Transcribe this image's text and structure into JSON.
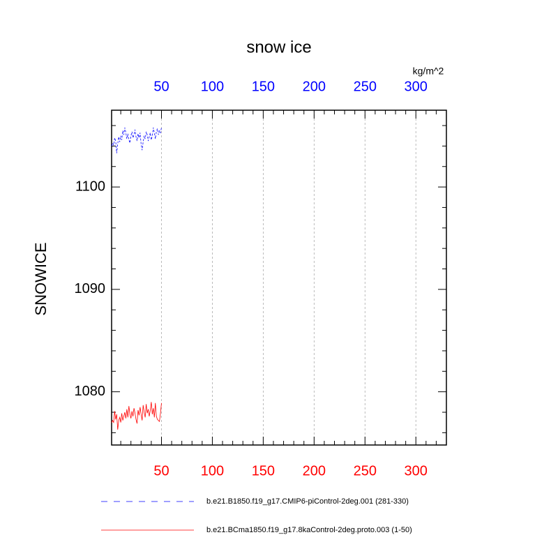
{
  "chart_data": {
    "type": "line",
    "title": "snow ice",
    "ylabel": "SNOWICE",
    "units": "kg/m^2",
    "x": [
      1,
      2,
      3,
      4,
      5,
      6,
      7,
      8,
      9,
      10,
      11,
      12,
      13,
      14,
      15,
      16,
      17,
      18,
      19,
      20,
      21,
      22,
      23,
      24,
      25,
      26,
      27,
      28,
      29,
      30,
      31,
      32,
      33,
      34,
      35,
      36,
      37,
      38,
      39,
      40,
      41,
      42,
      43,
      44,
      45,
      46,
      47,
      48,
      49,
      50
    ],
    "series": [
      {
        "name": "b.e21.B1850.f19_g17.CMIP6-piControl-2deg.001 (281-330)",
        "color": "#0000ff",
        "dash": true,
        "values": [
          1104.0,
          1104.3,
          1104.1,
          1104.8,
          1104.5,
          1103.3,
          1104.2,
          1104.9,
          1104.4,
          1105.0,
          1104.6,
          1105.5,
          1105.1,
          1105.8,
          1105.3,
          1104.7,
          1105.2,
          1104.6,
          1104.3,
          1105.0,
          1105.4,
          1104.8,
          1105.1,
          1105.6,
          1104.9,
          1104.5,
          1105.2,
          1104.8,
          1105.3,
          1104.2,
          1103.6,
          1104.4,
          1105.0,
          1104.7,
          1105.4,
          1105.1,
          1104.5,
          1104.9,
          1105.3,
          1104.6,
          1105.0,
          1105.8,
          1105.3,
          1104.7,
          1105.4,
          1105.7,
          1105.1,
          1105.5,
          1105.3,
          1105.8
        ]
      },
      {
        "name": "b.e21.BCma1850.f19_g17.8kaControl-2deg.proto.003 (1-50)",
        "color": "#ff0000",
        "dash": false,
        "values": [
          1077.0,
          1077.2,
          1077.0,
          1078.1,
          1077.3,
          1077.8,
          1076.3,
          1077.2,
          1077.5,
          1077.0,
          1077.9,
          1077.2,
          1077.6,
          1078.0,
          1077.4,
          1078.3,
          1077.5,
          1078.6,
          1077.8,
          1077.4,
          1078.1,
          1077.6,
          1078.4,
          1077.9,
          1077.3,
          1076.9,
          1078.2,
          1077.7,
          1078.5,
          1077.8,
          1077.2,
          1078.7,
          1078.0,
          1077.5,
          1078.8,
          1077.9,
          1078.3,
          1077.6,
          1078.2,
          1079.0,
          1077.8,
          1078.4,
          1077.5,
          1078.9,
          1077.6,
          1077.3,
          1077.2,
          1077.1,
          1077.9,
          1078.9
        ]
      }
    ],
    "xlim": [
      1,
      330
    ],
    "xticks": [
      50,
      100,
      150,
      200,
      250,
      300
    ],
    "xminorticks": [
      10,
      20,
      30,
      40,
      60,
      70,
      80,
      90,
      110,
      120,
      130,
      140,
      160,
      170,
      180,
      190,
      210,
      220,
      230,
      240,
      260,
      270,
      280,
      290,
      310,
      320,
      330
    ],
    "ylim": [
      1074.8,
      1107.5
    ],
    "yticks": [
      1080,
      1090,
      1100
    ],
    "yminorticks": [
      1076,
      1078,
      1082,
      1084,
      1086,
      1088,
      1092,
      1094,
      1096,
      1098,
      1102,
      1104,
      1106
    ],
    "top_tick_color": "#0000ff",
    "bottom_tick_color": "#ff0000",
    "grid": true
  }
}
